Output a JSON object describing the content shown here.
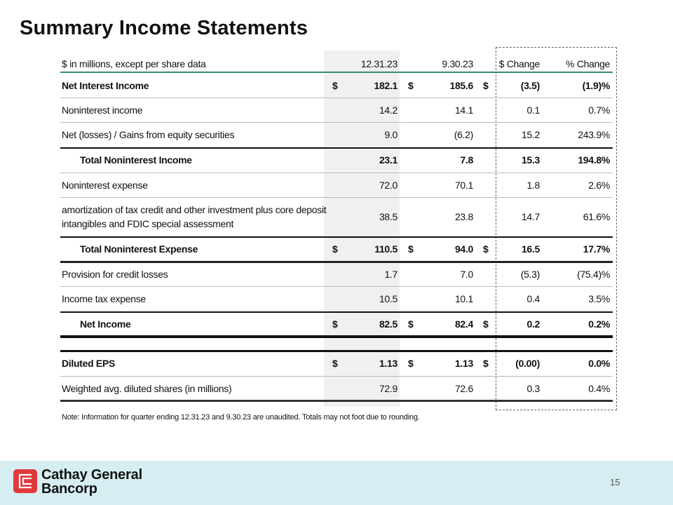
{
  "title": "Summary Income Statements",
  "table": {
    "header": {
      "label": "$ in millions, except per share data",
      "col1": "12.31.23",
      "col2": "9.30.23",
      "col3": "$ Change",
      "col4": "% Change"
    },
    "rows": [
      {
        "label": "Net Interest Income",
        "bold": true,
        "indent": false,
        "dollar": true,
        "values": [
          "182.1",
          "185.6",
          "(3.5)",
          "(1.9)%"
        ]
      },
      {
        "label": "Noninterest income",
        "bold": false,
        "indent": false,
        "dollar": false,
        "values": [
          "14.2",
          "14.1",
          "0.1",
          "0.7%"
        ]
      },
      {
        "label": "Net (losses) / Gains from equity securities",
        "bold": false,
        "indent": false,
        "dollar": false,
        "values": [
          "9.0",
          "(6.2)",
          "15.2",
          "243.9%"
        ]
      },
      {
        "label": "Total Noninterest Income",
        "bold": true,
        "indent": true,
        "dollar": false,
        "values": [
          "23.1",
          "7.8",
          "15.3",
          "194.8%"
        ]
      },
      {
        "label": "Noninterest expense",
        "bold": false,
        "indent": false,
        "dollar": false,
        "values": [
          "72.0",
          "70.1",
          "1.8",
          "2.6%"
        ]
      },
      {
        "label": "amortization of tax credit and other investment plus core deposit intangibles and FDIC special assessment",
        "bold": false,
        "indent": false,
        "dollar": false,
        "values": [
          "38.5",
          "23.8",
          "14.7",
          "61.6%"
        ]
      },
      {
        "label": "Total Noninterest Expense",
        "bold": true,
        "indent": true,
        "dollar": true,
        "values": [
          "110.5",
          "94.0",
          "16.5",
          "17.7%"
        ]
      },
      {
        "label": "Provision for credit losses",
        "bold": false,
        "indent": false,
        "dollar": false,
        "values": [
          "1.7",
          "7.0",
          "(5.3)",
          "(75.4)%"
        ]
      },
      {
        "label": "Income tax expense",
        "bold": false,
        "indent": false,
        "dollar": false,
        "values": [
          "10.5",
          "10.1",
          "0.4",
          "3.5%"
        ]
      },
      {
        "label": "Net Income",
        "bold": true,
        "indent": true,
        "dollar": true,
        "values": [
          "82.5",
          "82.4",
          "0.2",
          "0.2%"
        ]
      },
      {
        "label": "Diluted EPS",
        "bold": true,
        "indent": false,
        "dollar": true,
        "values": [
          "1.13",
          "1.13",
          "(0.00)",
          "0.0%"
        ]
      },
      {
        "label": "Weighted avg. diluted shares (in millions)",
        "bold": false,
        "indent": false,
        "dollar": false,
        "values": [
          "72.9",
          "72.6",
          "0.3",
          "0.4%"
        ]
      }
    ],
    "currency_symbol": "$"
  },
  "note": "Note: Information for quarter ending 12.31.23 and 9.30.23 are unaudited. Totals may not foot due to rounding.",
  "footer": {
    "brand_line1": "Cathay General",
    "brand_line2": "Bancorp",
    "page_number": "15"
  },
  "colors": {
    "header_rule": "#2e8b7a",
    "footer_bg": "#d6eef2",
    "logo_red": "#e03a3e",
    "shaded_column": "#f0f0f0"
  }
}
